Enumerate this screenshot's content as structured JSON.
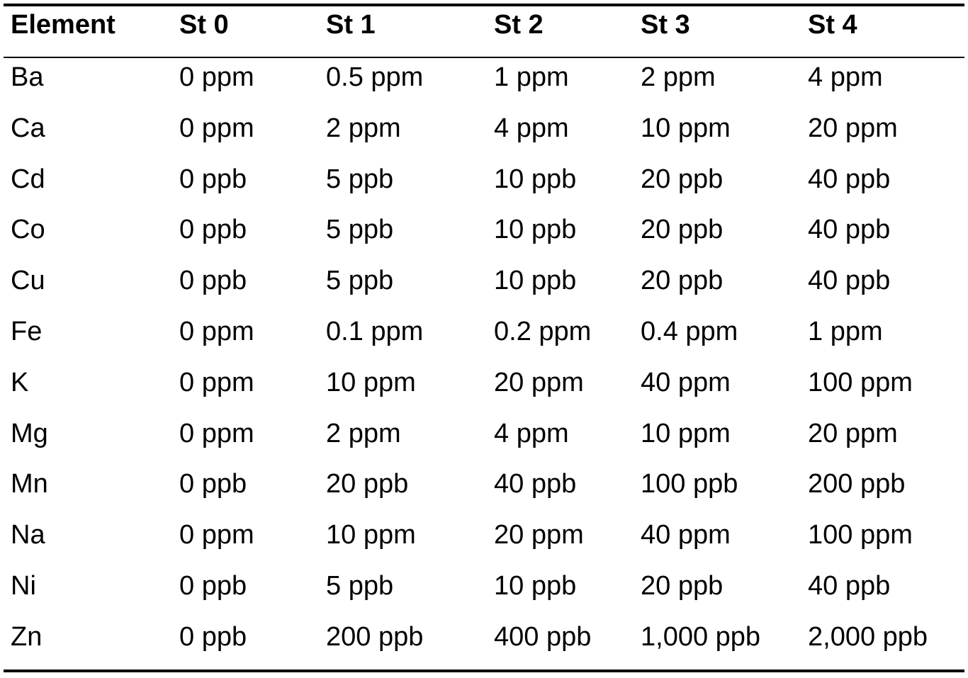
{
  "table": {
    "header": [
      "Element",
      "St 0",
      "St 1",
      "St 2",
      "St 3",
      "St 4"
    ],
    "rows": [
      [
        "Ba",
        "0 ppm",
        "0.5 ppm",
        "1 ppm",
        "2 ppm",
        "4 ppm"
      ],
      [
        "Ca",
        "0 ppm",
        "2 ppm",
        "4 ppm",
        "10 ppm",
        "20 ppm"
      ],
      [
        "Cd",
        "0 ppb",
        "5 ppb",
        "10 ppb",
        "20 ppb",
        "40 ppb"
      ],
      [
        "Co",
        "0 ppb",
        "5 ppb",
        "10 ppb",
        "20 ppb",
        "40 ppb"
      ],
      [
        "Cu",
        "0 ppb",
        "5 ppb",
        "10 ppb",
        "20 ppb",
        "40 ppb"
      ],
      [
        "Fe",
        "0 ppm",
        "0.1 ppm",
        "0.2 ppm",
        "0.4 ppm",
        "1 ppm"
      ],
      [
        "K",
        "0 ppm",
        "10 ppm",
        "20 ppm",
        "40 ppm",
        "100 ppm"
      ],
      [
        "Mg",
        "0 ppm",
        "2 ppm",
        "4 ppm",
        "10 ppm",
        "20 ppm"
      ],
      [
        "Mn",
        "0 ppb",
        "20 ppb",
        "40 ppb",
        "100 ppb",
        "200 ppb"
      ],
      [
        "Na",
        "0 ppm",
        "10 ppm",
        "20 ppm",
        "40 ppm",
        "100 ppm"
      ],
      [
        "Ni",
        "0 ppb",
        "5 ppb",
        "10 ppb",
        "20 ppb",
        "40 ppb"
      ],
      [
        "Zn",
        "0 ppb",
        "200 ppb",
        "400 ppb",
        "1,000 ppb",
        "2,000 ppb"
      ]
    ]
  }
}
